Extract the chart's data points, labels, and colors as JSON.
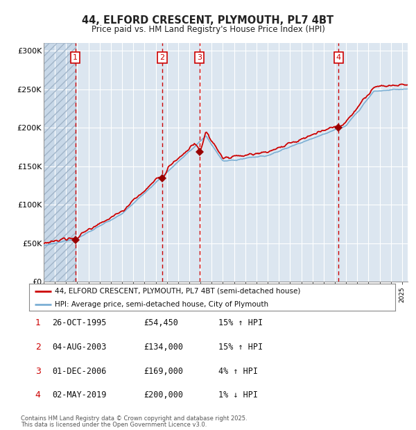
{
  "title_line1": "44, ELFORD CRESCENT, PLYMOUTH, PL7 4BT",
  "title_line2": "Price paid vs. HM Land Registry's House Price Index (HPI)",
  "background_color": "#ffffff",
  "plot_bg_color": "#dce6f0",
  "grid_color": "#ffffff",
  "red_line_color": "#cc0000",
  "blue_line_color": "#7bafd4",
  "marker_color": "#990000",
  "vline_color_dashed": "#cc0000",
  "ytick_labels": [
    "£0",
    "£50K",
    "£100K",
    "£150K",
    "£200K",
    "£250K",
    "£300K"
  ],
  "ytick_values": [
    0,
    50000,
    100000,
    150000,
    200000,
    250000,
    300000
  ],
  "ylim": [
    0,
    310000
  ],
  "xlim_start": 1993.0,
  "xlim_end": 2025.5,
  "purchases": [
    {
      "num": 1,
      "date": "26-OCT-1995",
      "year_x": 1995.82,
      "price": 54450,
      "hpi_pct": "15%",
      "hpi_dir": "↑"
    },
    {
      "num": 2,
      "date": "04-AUG-2003",
      "year_x": 2003.59,
      "price": 134000,
      "hpi_pct": "15%",
      "hpi_dir": "↑"
    },
    {
      "num": 3,
      "date": "01-DEC-2006",
      "year_x": 2006.92,
      "price": 169000,
      "hpi_pct": "4%",
      "hpi_dir": "↑"
    },
    {
      "num": 4,
      "date": "02-MAY-2019",
      "year_x": 2019.33,
      "price": 200000,
      "hpi_pct": "1%",
      "hpi_dir": "↓"
    }
  ],
  "legend_label_red": "44, ELFORD CRESCENT, PLYMOUTH, PL7 4BT (semi-detached house)",
  "legend_label_blue": "HPI: Average price, semi-detached house, City of Plymouth",
  "footer_line1": "Contains HM Land Registry data © Crown copyright and database right 2025.",
  "footer_line2": "This data is licensed under the Open Government Licence v3.0."
}
